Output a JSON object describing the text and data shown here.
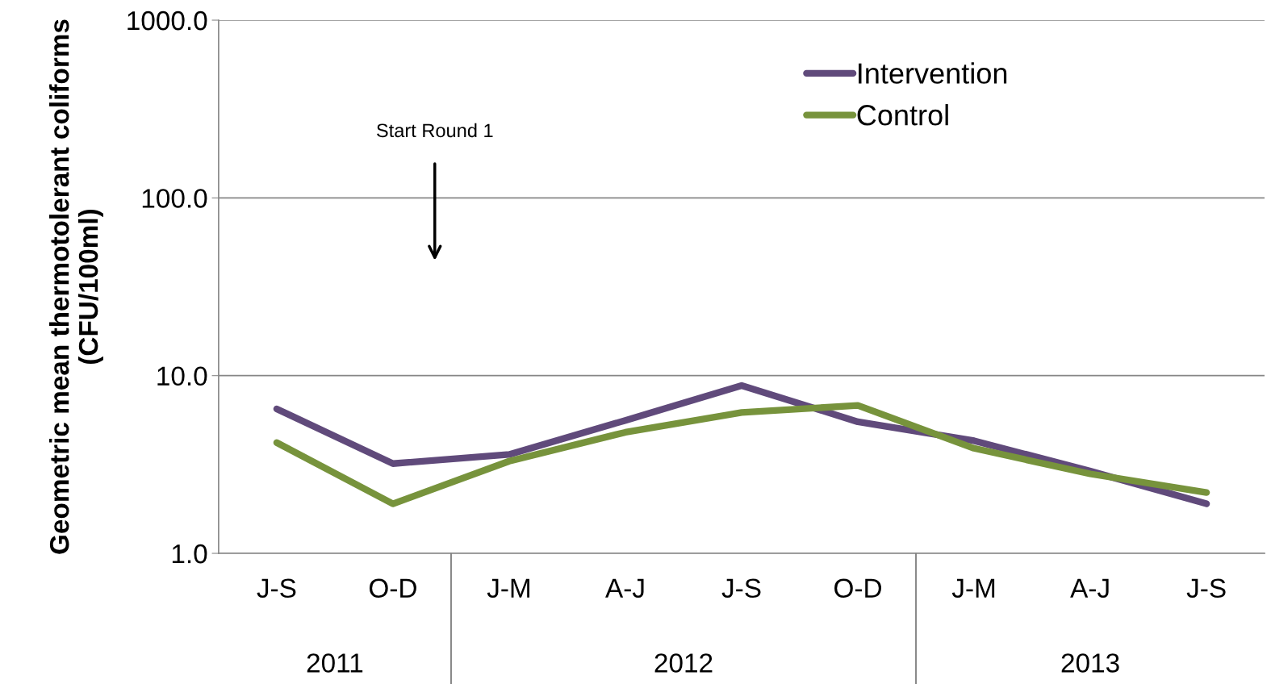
{
  "chart_data": {
    "type": "line",
    "ylabel": "Geometric mean thermotolerant coliforms (CFU/100ml)",
    "categories": [
      "J-S",
      "O-D",
      "J-M",
      "A-J",
      "J-S",
      "O-D",
      "J-M",
      "A-J",
      "J-S"
    ],
    "series": [
      {
        "name": "Intervention",
        "color": "#604a7b",
        "values": [
          6.5,
          3.2,
          3.6,
          5.6,
          8.8,
          5.5,
          4.3,
          2.9,
          1.9
        ]
      },
      {
        "name": "Control",
        "color": "#77933c",
        "values": [
          4.2,
          1.9,
          3.3,
          4.8,
          6.2,
          6.8,
          3.9,
          2.8,
          2.2
        ]
      }
    ],
    "log": true,
    "ylim": [
      1,
      1000
    ],
    "yticks": [
      {
        "value": 1,
        "label": "1.0"
      },
      {
        "value": 10,
        "label": "10.0"
      },
      {
        "value": 100,
        "label": "100.0"
      },
      {
        "value": 1000,
        "label": "1000.0"
      }
    ],
    "grid": "y",
    "legend": "top right",
    "marker": "none",
    "line_style": "solid",
    "annotations": [
      "Start Round 1",
      "2011",
      "2012",
      "2013"
    ]
  }
}
